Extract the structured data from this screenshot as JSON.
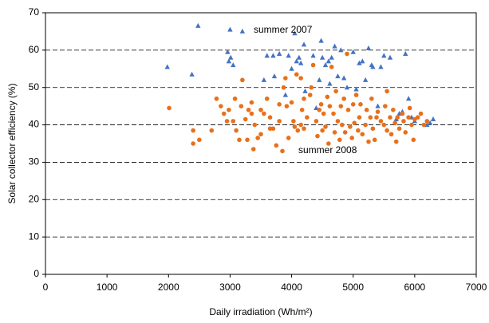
{
  "chart_data": {
    "type": "scatter",
    "x_label": "Daily irradiation (Wh/m²)",
    "y_label": "Solar collector efficiency (%)",
    "annotations": [
      "summer 2007",
      "summer 2008"
    ],
    "xlim": [
      0,
      7000
    ],
    "xticks": [
      0,
      1000,
      2000,
      3000,
      4000,
      5000,
      6000,
      7000
    ],
    "ylim": [
      0,
      70
    ],
    "yticks": [
      0,
      10,
      20,
      30,
      40,
      50,
      60,
      70
    ],
    "grid": true,
    "series": [
      {
        "color": "#4472c4",
        "marker": "triangle",
        "x": [
          1980,
          2380,
          2480,
          2960,
          2980,
          3000,
          3010,
          3200,
          3050,
          3550,
          3600,
          3700,
          3720,
          3800,
          3900,
          3950,
          4000,
          4050,
          4080,
          4120,
          4150,
          4200,
          4220,
          4350,
          4450,
          4480,
          4500,
          4550,
          4600,
          4620,
          4700,
          4750,
          4800,
          4850,
          4900,
          5000,
          5050,
          5100,
          5150,
          5200,
          5250,
          5300,
          5320,
          5400,
          5450,
          5500,
          5600,
          5700,
          5750,
          5800,
          5850,
          5900,
          5950,
          6000,
          6200,
          6300,
          6250,
          4650,
          4400
        ],
        "y": [
          55.5,
          53.5,
          66.5,
          59.5,
          57,
          65.5,
          58,
          65,
          56,
          52,
          58.5,
          58.5,
          53,
          59,
          48,
          58.5,
          55,
          64.5,
          57,
          58,
          56.5,
          61.5,
          49,
          58.5,
          52,
          62.5,
          58,
          56,
          57,
          51,
          61,
          53,
          60,
          52.5,
          50,
          59.5,
          49.5,
          56.5,
          57,
          52,
          60.5,
          56,
          55.5,
          45,
          55.5,
          58.5,
          58,
          41.5,
          43,
          43.5,
          59,
          47,
          42,
          41,
          40,
          41.5,
          40.5,
          58,
          44.5
        ]
      },
      {
        "color": "#e8701a",
        "marker": "circle",
        "x": [
          2010,
          2400,
          2400,
          2500,
          2700,
          2780,
          2850,
          2900,
          2950,
          2980,
          3050,
          3080,
          3100,
          3150,
          3180,
          3200,
          3250,
          3280,
          3300,
          3350,
          3380,
          3400,
          3450,
          3500,
          3500,
          3550,
          3600,
          3650,
          3700,
          3750,
          3800,
          3800,
          3850,
          3870,
          3900,
          3920,
          3950,
          4000,
          4030,
          4050,
          4080,
          4100,
          4150,
          4170,
          4200,
          4200,
          4250,
          4300,
          4320,
          4350,
          4400,
          4420,
          4450,
          4480,
          4500,
          4520,
          4550,
          4580,
          4600,
          4620,
          4650,
          4680,
          4700,
          4720,
          4750,
          4780,
          4800,
          4820,
          4850,
          4870,
          4900,
          4920,
          4950,
          4980,
          5000,
          5020,
          5050,
          5080,
          5100,
          5120,
          5150,
          5200,
          5220,
          5250,
          5280,
          5300,
          5320,
          5350,
          5380,
          5400,
          5450,
          5500,
          5520,
          5550,
          5600,
          5620,
          5650,
          5680,
          5700,
          5720,
          5750,
          5800,
          5820,
          5850,
          5900,
          5920,
          5950,
          5980,
          6000,
          6050,
          6100,
          6150,
          6200,
          5550,
          3350,
          4150,
          3650
        ],
        "y": [
          44.5,
          38.5,
          35,
          36,
          38.5,
          47,
          45,
          43,
          41,
          44,
          41,
          47,
          38.5,
          36,
          45,
          52,
          41.5,
          36,
          44,
          46,
          33.5,
          40,
          36.5,
          44,
          37.5,
          43,
          47,
          42,
          39,
          34.5,
          41,
          45.5,
          33,
          50,
          52.5,
          45,
          36.5,
          46,
          41,
          39.5,
          53.5,
          38.5,
          40,
          44,
          39,
          47,
          42,
          48,
          50,
          56,
          41,
          37,
          44,
          45.5,
          38.5,
          43,
          39.5,
          47.5,
          35,
          45,
          55.5,
          43,
          38,
          49,
          41,
          36,
          45,
          40,
          47,
          38,
          59,
          44,
          39.5,
          36.5,
          45.5,
          40.5,
          48,
          38.5,
          42,
          45.5,
          37.5,
          40,
          44,
          35.5,
          42,
          47,
          39,
          36,
          42,
          43.5,
          41,
          40,
          45,
          38.5,
          42,
          37.5,
          44,
          40.5,
          35.5,
          42,
          39,
          43,
          41,
          38,
          42,
          44.5,
          40,
          36,
          41.5,
          42,
          43,
          40,
          41,
          49,
          43,
          52.5,
          39
        ]
      }
    ]
  }
}
